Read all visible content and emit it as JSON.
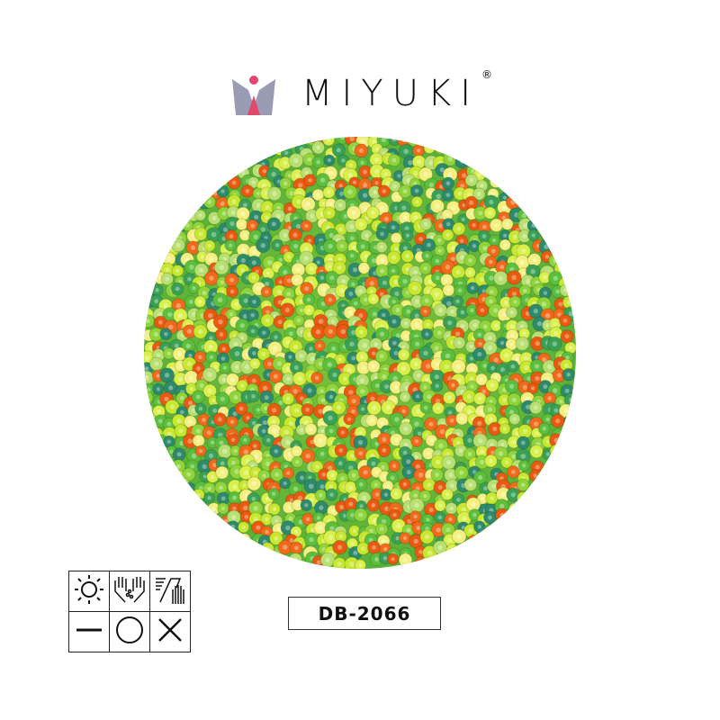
{
  "brand": {
    "name": "MIYUKI",
    "registered_mark": "®",
    "logo_colors": {
      "crown": "#9a9cb3",
      "accent": "#e0486e"
    }
  },
  "product": {
    "code": "DB-2066"
  },
  "bead_palette": [
    "#f06a1a",
    "#e85a10",
    "#d9f04a",
    "#c8e830",
    "#8ed43a",
    "#5cbf3c",
    "#3aa055",
    "#2d8a6a",
    "#b8e070",
    "#f4f080"
  ],
  "care_icons": [
    [
      "sun-icon",
      "hand-wash-icon",
      "dry-clean-icon"
    ],
    [
      "dash-icon",
      "circle-icon",
      "cross-icon"
    ]
  ]
}
